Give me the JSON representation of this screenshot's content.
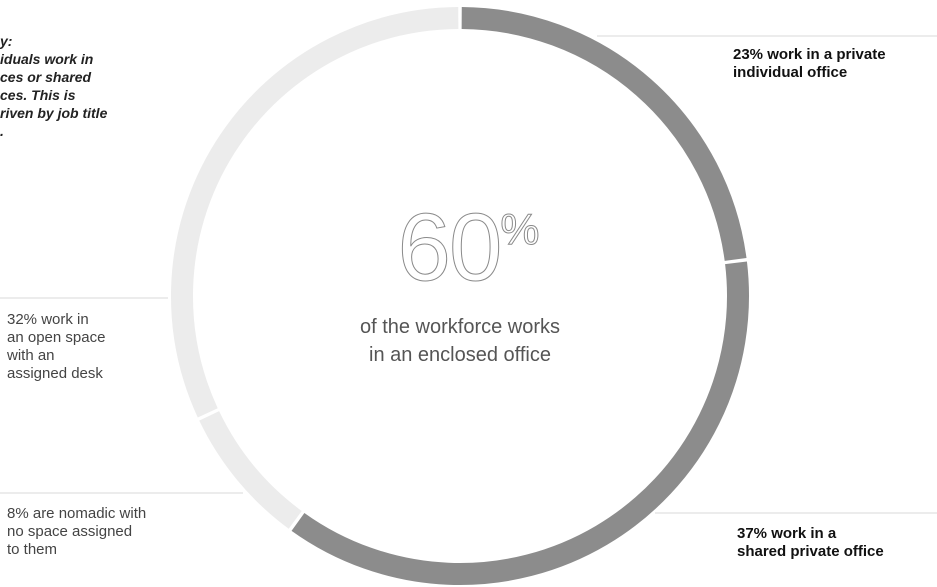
{
  "side_note": "y:\niduals work in\nces or shared\nces. This is\nriven by job title\n.",
  "center": {
    "value": "60",
    "unit": "%",
    "caption": "of the workforce works\nin an enclosed office"
  },
  "annotations": {
    "private_individual": "23% work in a private\nindividual office",
    "shared_private": "37% work in a\nshared private office",
    "open_assigned": "32% work in\nan open space\nwith an\nassigned desk",
    "nomadic": "8% are nomadic with\nno space assigned\nto them"
  },
  "chart_data": {
    "type": "pie",
    "style": "donut",
    "categories": [
      "private individual office",
      "shared private office",
      "nomadic, no space assigned",
      "open space with an assigned desk"
    ],
    "values": [
      23,
      37,
      8,
      32
    ],
    "colors": [
      "#8c8c8c",
      "#8c8c8c",
      "#ececec",
      "#ececec"
    ],
    "title": "",
    "grid": false
  }
}
